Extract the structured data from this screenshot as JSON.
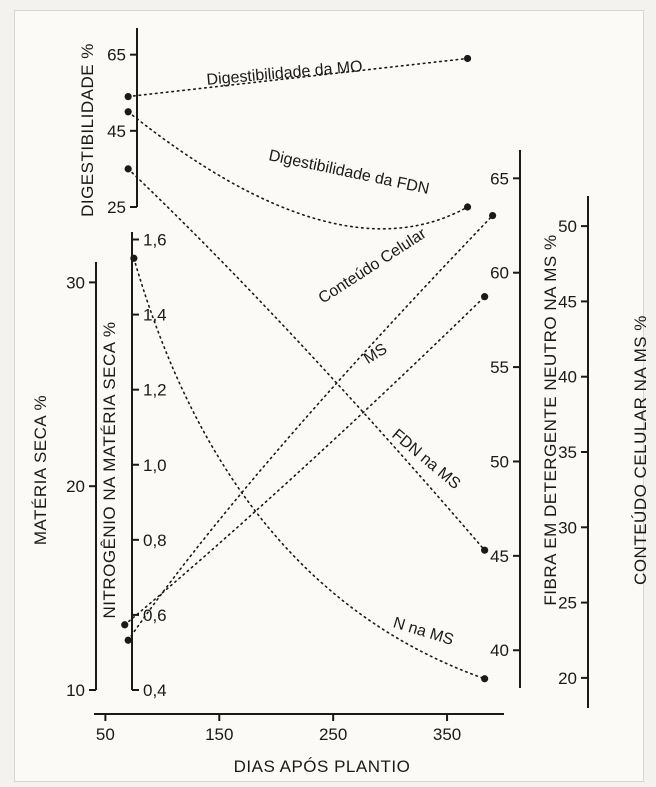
{
  "chart_data": {
    "type": "line",
    "xlabel": "DIAS APÓS PLANTIO",
    "x_ticks": [
      50,
      150,
      250,
      350
    ],
    "xlim": [
      40,
      400
    ],
    "axes": [
      {
        "id": "dig",
        "label": "DIGESTIBILIDADE %",
        "ticks": [
          25,
          45,
          65
        ],
        "tick_labels": [
          "25",
          "45",
          "65"
        ],
        "ylim": [
          25,
          72
        ]
      },
      {
        "id": "ms",
        "label": "MATÉRIA SECA %",
        "ticks": [
          10,
          20,
          30
        ],
        "tick_labels": [
          "10",
          "20",
          "30"
        ],
        "ylim": [
          10,
          31
        ]
      },
      {
        "id": "n",
        "label": "NITROGÊNIO NA MATÉRIA SECA %",
        "ticks": [
          0.4,
          0.6,
          0.8,
          1.0,
          1.2,
          1.4,
          1.6
        ],
        "tick_labels": [
          "0,4",
          "0,6",
          "0,8",
          "1,0",
          "1,2",
          "1,4",
          "1,6"
        ],
        "ylim": [
          0.4,
          1.62
        ]
      },
      {
        "id": "fdn",
        "label": "FIBRA EM DETERGENTE NEUTRO NA MS %",
        "ticks": [
          40,
          45,
          50,
          55,
          60,
          65
        ],
        "tick_labels": [
          "40",
          "45",
          "50",
          "55",
          "60",
          "65"
        ],
        "ylim": [
          38,
          66.5
        ]
      },
      {
        "id": "cc",
        "label": "CONTEÚDO CELULAR NA MS %",
        "ticks": [
          20,
          25,
          30,
          35,
          40,
          45,
          50
        ],
        "tick_labels": [
          "20",
          "25",
          "30",
          "35",
          "40",
          "45",
          "50"
        ],
        "ylim": [
          18,
          52
        ]
      }
    ],
    "series": [
      {
        "name": "Digestibilidade da MO",
        "axis": "dig",
        "x": [
          70,
          368
        ],
        "y": [
          54,
          64
        ]
      },
      {
        "name": "Digestibilidade da FDN",
        "axis": "dig",
        "x": [
          70,
          368
        ],
        "y": [
          50,
          25
        ]
      },
      {
        "name": "FDN na MS",
        "axis": "fdn",
        "x": [
          70,
          383
        ],
        "y": [
          65.5,
          45.3
        ]
      },
      {
        "name": "N na MS",
        "axis": "n",
        "x": [
          75,
          383
        ],
        "y": [
          1.55,
          0.43
        ]
      },
      {
        "name": "MS",
        "axis": "ms",
        "x": [
          67,
          383
        ],
        "y": [
          13.2,
          29.3
        ]
      },
      {
        "name": "Conteúdo Celular",
        "axis": "cc",
        "x": [
          70,
          390
        ],
        "y": [
          22.5,
          50.7
        ]
      }
    ]
  }
}
